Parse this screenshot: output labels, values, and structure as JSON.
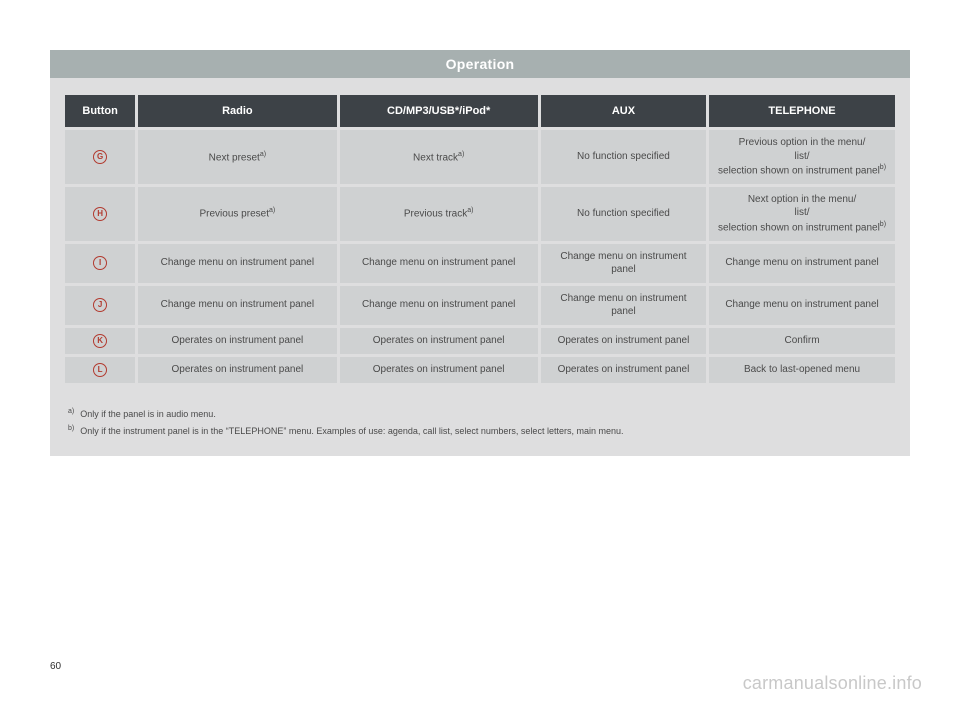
{
  "title": "Operation",
  "table": {
    "headers": {
      "button": "Button",
      "radio": "Radio",
      "cd": "CD/MP3/USB*/iPod*",
      "aux": "AUX",
      "telephone": "TELEPHONE"
    },
    "rows": [
      {
        "letter": "G",
        "radio": "Next preset",
        "radio_sup": "a)",
        "cd": "Next track",
        "cd_sup": "a)",
        "aux": "No function specified",
        "tel": "Previous option in the menu/\nlist/\nselection shown on instrument panel",
        "tel_sup": "b)"
      },
      {
        "letter": "H",
        "radio": "Previous preset",
        "radio_sup": "a)",
        "cd": "Previous track",
        "cd_sup": "a)",
        "aux": "No function specified",
        "tel": "Next option in the menu/\nlist/\nselection shown on instrument panel",
        "tel_sup": "b)"
      },
      {
        "letter": "I",
        "radio": "Change menu on instrument panel",
        "cd": "Change menu on instrument panel",
        "aux": "Change menu on instrument panel",
        "tel": "Change menu on instrument panel"
      },
      {
        "letter": "J",
        "radio": "Change menu on instrument panel",
        "cd": "Change menu on instrument panel",
        "aux": "Change menu on instrument panel",
        "tel": "Change menu on instrument panel"
      },
      {
        "letter": "K",
        "radio": "Operates on instrument panel",
        "cd": "Operates on instrument panel",
        "aux": "Operates on instrument panel",
        "tel": "Confirm"
      },
      {
        "letter": "L",
        "radio": "Operates on instrument panel",
        "cd": "Operates on instrument panel",
        "aux": "Operates on instrument panel",
        "tel": "Back to last-opened menu"
      }
    ]
  },
  "footnotes": {
    "a": {
      "mark": "a)",
      "text": "Only if the panel is in audio menu."
    },
    "b": {
      "mark": "b)",
      "text": "Only if the instrument panel is in the “TELEPHONE” menu. Examples of use: agenda, call list, select numbers, select letters, main menu."
    }
  },
  "page_number": "60",
  "watermark": "carmanualsonline.info",
  "colors": {
    "title_bg": "#a7b0b0",
    "header_bg": "#3d4247",
    "cell_bg": "#cfd1d2",
    "band_bg": "#dededf",
    "letter_color": "#b23a2f",
    "watermark_color": "#c8c8c8"
  }
}
